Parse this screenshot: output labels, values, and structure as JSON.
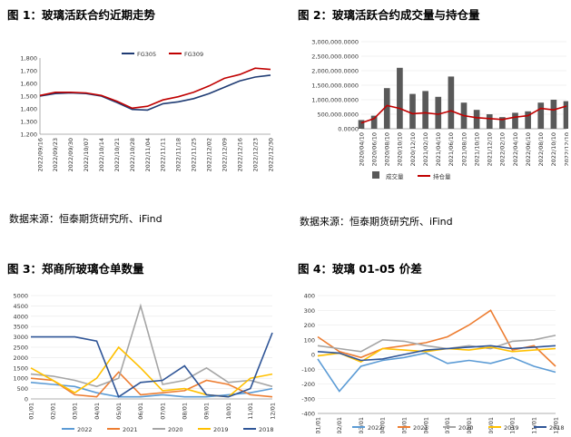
{
  "figures": [
    {
      "title": "图 1：玻璃活跃合约近期走势",
      "source": "数据来源：恒泰期货研究所、iFind"
    },
    {
      "title": "图 2：玻璃活跃合约成交量与持仓量",
      "source": "数据来源：恒泰期货研究所、iFind"
    },
    {
      "title": "图 3：郑商所玻璃仓单数量"
    },
    {
      "title": "图 4：玻璃 01-05 价差"
    }
  ],
  "chart_data": [
    {
      "type": "line",
      "x": [
        "2022/09/16",
        "2022/09/23",
        "2022/09/30",
        "2022/10/07",
        "2022/10/14",
        "2022/10/21",
        "2022/10/28",
        "2022/11/04",
        "2022/11/11",
        "2022/11/18",
        "2022/11/25",
        "2022/12/02",
        "2022/12/09",
        "2022/12/16",
        "2022/12/23",
        "2022/12/30"
      ],
      "ylim": [
        1200,
        1800
      ],
      "yticks": [
        "1,200",
        "1,300",
        "1,400",
        "1,500",
        "1,600",
        "1,700",
        "1,800"
      ],
      "series": [
        {
          "name": "FG305",
          "color": "#1f3b73",
          "values": [
            1500,
            1520,
            1525,
            1520,
            1500,
            1450,
            1395,
            1390,
            1440,
            1455,
            1480,
            1520,
            1570,
            1620,
            1650,
            1665
          ]
        },
        {
          "name": "FG309",
          "color": "#c00000",
          "values": [
            1505,
            1530,
            1530,
            1525,
            1505,
            1460,
            1405,
            1420,
            1470,
            1495,
            1530,
            1580,
            1640,
            1670,
            1720,
            1710
          ]
        }
      ]
    },
    {
      "type": "bar",
      "x": [
        "2020/04/10",
        "2020/06/10",
        "2020/08/10",
        "2020/10/10",
        "2020/12/10",
        "2021/02/10",
        "2021/04/10",
        "2021/06/10",
        "2021/08/10",
        "2021/10/10",
        "2021/12/10",
        "2022/02/10",
        "2022/04/10",
        "2022/06/10",
        "2022/08/10",
        "2022/10/10",
        "2022/12/10"
      ],
      "ylim": [
        0,
        3000000
      ],
      "yticks": [
        "0.0000",
        "500,000.0000",
        "1,000,000.0000",
        "1,500,000.0000",
        "2,000,000.0000",
        "2,500,000.0000",
        "3,000,000.0000"
      ],
      "series": [
        {
          "name": "成交量",
          "color": "#595959",
          "values": [
            300000,
            450000,
            1400000,
            2100000,
            1200000,
            1300000,
            1100000,
            1800000,
            900000,
            650000,
            500000,
            400000,
            550000,
            600000,
            900000,
            1000000,
            950000
          ]
        },
        {
          "name": "持仓量",
          "color": "#c00000",
          "values": [
            200000,
            350000,
            800000,
            700000,
            520000,
            550000,
            500000,
            620000,
            450000,
            380000,
            350000,
            320000,
            400000,
            450000,
            700000,
            650000,
            780000
          ]
        }
      ]
    },
    {
      "type": "line",
      "x": [
        "01/01",
        "02/01",
        "03/01",
        "04/01",
        "05/01",
        "06/01",
        "07/01",
        "08/01",
        "09/01",
        "10/01",
        "11/01",
        "12/01"
      ],
      "ylim": [
        0,
        5000
      ],
      "yticks": [
        "0",
        "500",
        "1000",
        "1500",
        "2000",
        "2500",
        "3000",
        "3500",
        "4000",
        "4500",
        "5000"
      ],
      "series": [
        {
          "name": "2022",
          "color": "#5b9bd5",
          "values": [
            800,
            700,
            600,
            300,
            100,
            100,
            200,
            100,
            100,
            200,
            300,
            500
          ]
        },
        {
          "name": "2021",
          "color": "#ed7d31",
          "values": [
            1000,
            900,
            200,
            100,
            1300,
            200,
            300,
            400,
            900,
            700,
            200,
            100
          ]
        },
        {
          "name": "2020",
          "color": "#a5a5a5",
          "values": [
            1200,
            1100,
            900,
            600,
            1000,
            4500,
            700,
            900,
            1500,
            800,
            900,
            600
          ]
        },
        {
          "name": "2019",
          "color": "#ffc000",
          "values": [
            1500,
            900,
            300,
            1000,
            2500,
            1500,
            400,
            500,
            200,
            100,
            1000,
            1200
          ]
        },
        {
          "name": "2018",
          "color": "#2f5597",
          "values": [
            3000,
            3000,
            3000,
            2800,
            100,
            800,
            900,
            1600,
            200,
            100,
            500,
            3200
          ]
        }
      ]
    },
    {
      "type": "line",
      "x": [
        "01/01",
        "02/01",
        "03/01",
        "04/01",
        "05/01",
        "06/01",
        "07/01",
        "08/01",
        "09/01",
        "10/01",
        "11/01",
        "12/01"
      ],
      "ylim": [
        -400,
        400
      ],
      "yticks": [
        "-400",
        "-300",
        "-200",
        "-100",
        "0",
        "100",
        "200",
        "300",
        "400"
      ],
      "series": [
        {
          "name": "2022",
          "color": "#5b9bd5",
          "values": [
            -30,
            -250,
            -80,
            -40,
            -20,
            10,
            -60,
            -40,
            -60,
            -20,
            -80,
            -120
          ]
        },
        {
          "name": "2021",
          "color": "#ed7d31",
          "values": [
            120,
            20,
            -20,
            40,
            60,
            80,
            120,
            200,
            300,
            30,
            60,
            -80
          ]
        },
        {
          "name": "2020",
          "color": "#a5a5a5",
          "values": [
            60,
            40,
            20,
            100,
            90,
            60,
            40,
            60,
            40,
            90,
            100,
            130
          ]
        },
        {
          "name": "2019",
          "color": "#ffc000",
          "values": [
            -10,
            10,
            -50,
            40,
            30,
            20,
            40,
            30,
            50,
            20,
            30,
            40
          ]
        },
        {
          "name": "2018",
          "color": "#2f5597",
          "values": [
            20,
            10,
            -40,
            -30,
            0,
            30,
            40,
            50,
            60,
            40,
            50,
            60
          ]
        }
      ]
    }
  ]
}
